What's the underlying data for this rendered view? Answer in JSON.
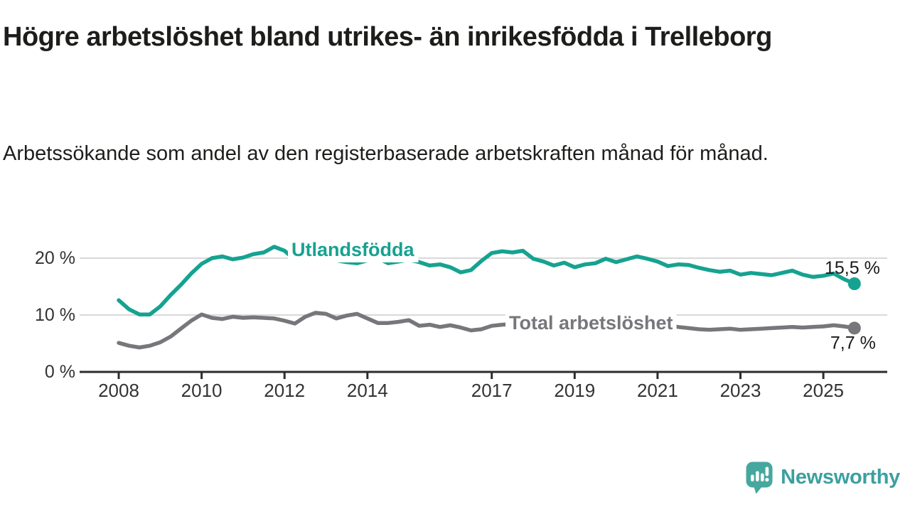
{
  "header": {
    "title": "Högre arbetslöshet bland utrikes- än inrikesfödda i Trelleborg",
    "subtitle": "Arbetssökande som andel av den registerbaserade arbetskraften månad för månad."
  },
  "footer": {
    "brand": "Newsworthy"
  },
  "colors": {
    "foreign_born_line": "#16A291",
    "total_line": "#77777B",
    "axis": "#2D2D2D",
    "grid": "#D9D9D9",
    "tick_label": "#333333",
    "value_label": "#1A1A1A",
    "logo_icon": "#46A79E",
    "logo_text": "#3D9F9F"
  },
  "chart_data": {
    "type": "line",
    "title": "Högre arbetslöshet bland utrikes- än inrikesfödda i Trelleborg",
    "subtitle": "Arbetssökande som andel av den registerbaserade arbetskraften månad för månad.",
    "xlabel": "",
    "ylabel": "",
    "ylim": [
      0,
      24
    ],
    "xlim": [
      2007.05,
      2026.55
    ],
    "grid": "horizontal",
    "legend_position": "inline-labels",
    "x_ticks": [
      2008,
      2010,
      2012,
      2014,
      2017,
      2019,
      2021,
      2023,
      2025
    ],
    "y_ticks": [
      0,
      10,
      20
    ],
    "y_tick_labels": [
      "0 %",
      "10 %",
      "20 %"
    ],
    "x": [
      2008.0,
      2008.25,
      2008.5,
      2008.75,
      2009.0,
      2009.25,
      2009.5,
      2009.75,
      2010.0,
      2010.25,
      2010.5,
      2010.75,
      2011.0,
      2011.25,
      2011.5,
      2011.75,
      2012.0,
      2012.25,
      2012.5,
      2012.75,
      2013.0,
      2013.25,
      2013.5,
      2013.75,
      2014.0,
      2014.25,
      2014.5,
      2014.75,
      2015.0,
      2015.25,
      2015.5,
      2015.75,
      2016.0,
      2016.25,
      2016.5,
      2016.75,
      2017.0,
      2017.25,
      2017.5,
      2017.75,
      2018.0,
      2018.25,
      2018.5,
      2018.75,
      2019.0,
      2019.25,
      2019.5,
      2019.75,
      2020.0,
      2020.25,
      2020.5,
      2020.75,
      2021.0,
      2021.25,
      2021.5,
      2021.75,
      2022.0,
      2022.25,
      2022.5,
      2022.75,
      2023.0,
      2023.25,
      2023.5,
      2023.75,
      2024.0,
      2024.25,
      2024.5,
      2024.75,
      2025.0,
      2025.25,
      2025.5,
      2025.75
    ],
    "series": [
      {
        "name": "Utlandsfödda",
        "color": "#16A291",
        "end_label": "15,5 %",
        "last_value": 15.5,
        "values": [
          12.6,
          11.0,
          10.1,
          10.1,
          11.5,
          13.5,
          15.3,
          17.3,
          19.0,
          20.0,
          20.3,
          19.8,
          20.1,
          20.7,
          21.0,
          22.0,
          21.3,
          19.7,
          19.6,
          20.0,
          20.2,
          19.6,
          19.3,
          19.1,
          19.6,
          20.0,
          19.1,
          19.4,
          19.7,
          19.3,
          18.7,
          18.9,
          18.4,
          17.5,
          17.9,
          19.5,
          20.9,
          21.2,
          21.0,
          21.3,
          19.9,
          19.4,
          18.7,
          19.2,
          18.4,
          18.9,
          19.1,
          19.9,
          19.3,
          19.8,
          20.3,
          19.9,
          19.4,
          18.6,
          18.9,
          18.8,
          18.3,
          17.9,
          17.6,
          17.8,
          17.1,
          17.4,
          17.2,
          17.0,
          17.4,
          17.8,
          17.1,
          16.7,
          16.9,
          17.3,
          16.3,
          15.5
        ]
      },
      {
        "name": "Total arbetslöshet",
        "color": "#77777B",
        "end_label": "7,7 %",
        "last_value": 7.7,
        "values": [
          5.1,
          4.6,
          4.3,
          4.6,
          5.2,
          6.2,
          7.6,
          9.0,
          10.1,
          9.5,
          9.3,
          9.7,
          9.5,
          9.6,
          9.5,
          9.4,
          9.0,
          8.5,
          9.7,
          10.4,
          10.2,
          9.4,
          9.9,
          10.2,
          9.4,
          8.6,
          8.6,
          8.8,
          9.1,
          8.1,
          8.3,
          7.9,
          8.2,
          7.8,
          7.3,
          7.5,
          8.1,
          8.3,
          8.4,
          8.6,
          8.4,
          8.2,
          8.1,
          8.2,
          8.0,
          8.1,
          8.2,
          8.4,
          8.3,
          8.8,
          9.1,
          8.9,
          8.6,
          8.2,
          7.9,
          7.7,
          7.5,
          7.4,
          7.5,
          7.6,
          7.4,
          7.5,
          7.6,
          7.7,
          7.8,
          7.9,
          7.8,
          7.9,
          8.0,
          8.2,
          8.0,
          7.7
        ]
      }
    ]
  }
}
